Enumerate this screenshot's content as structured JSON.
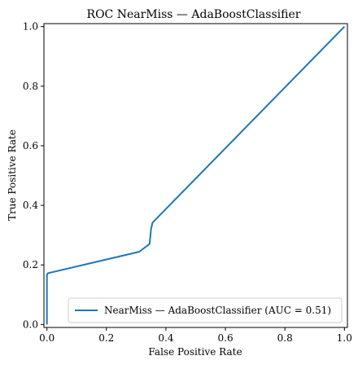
{
  "chart_data": {
    "type": "line",
    "title": "ROC NearMiss — AdaBoostClassifier",
    "xlabel": "False Positive Rate",
    "ylabel": "True Positive Rate",
    "xlim": [
      -0.01,
      1.01
    ],
    "ylim": [
      -0.01,
      1.01
    ],
    "x_ticks": [
      0.0,
      0.2,
      0.4,
      0.6,
      0.8,
      1.0
    ],
    "y_ticks": [
      0.0,
      0.2,
      0.4,
      0.6,
      0.8,
      1.0
    ],
    "x_tick_labels": [
      "0.0",
      "0.2",
      "0.4",
      "0.6",
      "0.8",
      "1.0"
    ],
    "y_tick_labels": [
      "0.0",
      "0.2",
      "0.4",
      "0.6",
      "0.8",
      "1.0"
    ],
    "grid": false,
    "legend_position": "lower-right",
    "series": [
      {
        "name": "NearMiss — AdaBoostClassifier (AUC = 0.51)",
        "color": "#1f77b4",
        "x": [
          0.0,
          0.0,
          0.003,
          0.31,
          0.345,
          0.35,
          0.355,
          1.0
        ],
        "y": [
          0.0,
          0.165,
          0.172,
          0.244,
          0.27,
          0.32,
          0.342,
          1.0
        ]
      }
    ]
  }
}
